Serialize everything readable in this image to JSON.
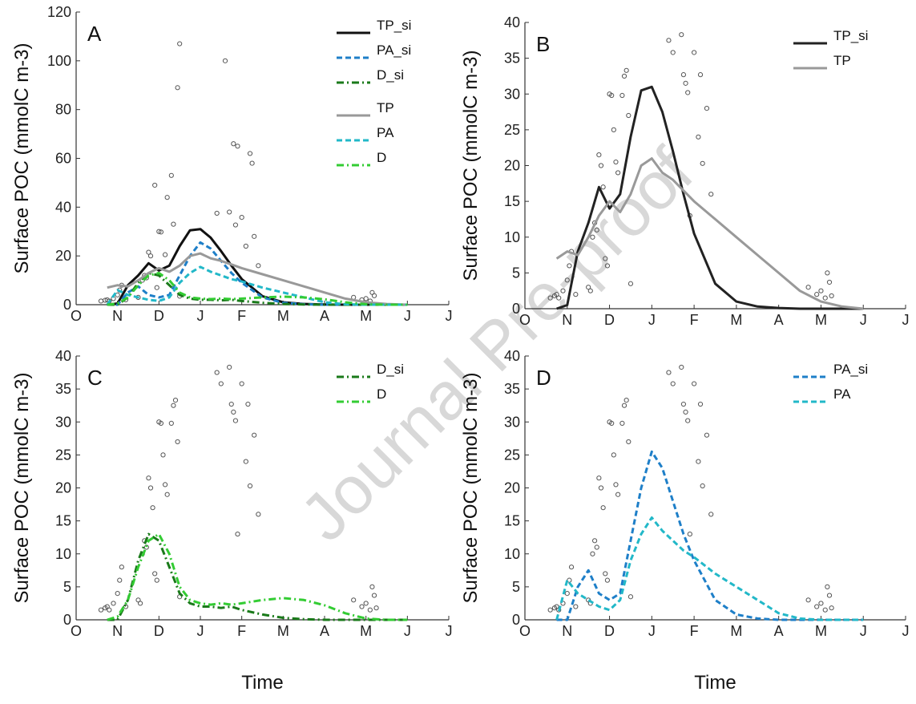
{
  "watermark": "Journal Pre-proof",
  "chart_data": [
    {
      "type": "line",
      "label": "A",
      "ylabel": "Surface POC (mmolC m-3)",
      "legend": "upper right",
      "xlim": [
        0,
        9
      ],
      "xticks": [
        {
          "value": 0,
          "label": "O"
        },
        {
          "value": 1,
          "label": "N"
        },
        {
          "value": 2,
          "label": "D"
        },
        {
          "value": 3,
          "label": "J"
        },
        {
          "value": 4,
          "label": "F"
        },
        {
          "value": 5,
          "label": "M"
        },
        {
          "value": 6,
          "label": "A"
        },
        {
          "value": 7,
          "label": "M"
        },
        {
          "value": 8,
          "label": "J"
        },
        {
          "value": 9,
          "label": "J"
        }
      ],
      "ylim": [
        0,
        120
      ],
      "yticks": [
        0,
        20,
        40,
        60,
        80,
        100,
        120
      ],
      "x": [
        0.75,
        1,
        1.25,
        1.5,
        1.75,
        2,
        2.25,
        2.5,
        2.75,
        3,
        3.25,
        3.5,
        3.75,
        4,
        4.5,
        5,
        5.5,
        6,
        6.5,
        7,
        7.5,
        8
      ],
      "series": [
        {
          "name": "TP_si",
          "color": "#111111",
          "dash": "solid",
          "values": [
            0,
            0.5,
            8,
            12,
            17,
            14,
            16,
            24,
            30.5,
            31,
            27.5,
            22,
            16,
            10.5,
            3.5,
            1,
            0.3,
            0.1,
            0,
            0,
            0,
            0
          ]
        },
        {
          "name": "PA_si",
          "color": "#1e7fc8",
          "dash": "dash",
          "values": [
            0,
            0,
            5,
            7.5,
            4,
            3,
            4,
            12,
            20,
            25.5,
            23,
            18,
            13,
            9,
            3,
            0.8,
            0.2,
            0,
            0,
            0,
            0,
            0
          ]
        },
        {
          "name": "D_si",
          "color": "#1a7a1a",
          "dash": "dashdot",
          "values": [
            0,
            0,
            3,
            9,
            13,
            12,
            8,
            4,
            2.5,
            2,
            2,
            1.8,
            2,
            1.5,
            0.8,
            0.3,
            0.1,
            0,
            0,
            0,
            0,
            0
          ]
        },
        {
          "name": "TP",
          "color": "#999999",
          "dash": "solid",
          "values": [
            7,
            8,
            7.5,
            10,
            13,
            15,
            13.5,
            16,
            20,
            21,
            19,
            18,
            16.5,
            15,
            12.5,
            10,
            7.5,
            5,
            2.5,
            1,
            0.3,
            0
          ]
        },
        {
          "name": "PA",
          "color": "#22b8c8",
          "dash": "dash",
          "values": [
            0,
            6,
            4,
            3,
            2,
            1.5,
            3,
            9,
            13,
            15.5,
            13.5,
            12,
            10.5,
            9.5,
            7,
            5,
            3,
            1,
            0.2,
            0,
            0,
            0
          ]
        },
        {
          "name": "D",
          "color": "#33cc33",
          "dash": "dashdot",
          "values": [
            0,
            0.5,
            3,
            8,
            12,
            13,
            10,
            5,
            3,
            2.5,
            2.3,
            2.5,
            2.3,
            2.5,
            3,
            3.3,
            3,
            2.2,
            1,
            0.2,
            0,
            0
          ]
        }
      ],
      "observations": {
        "x": [
          0.6,
          0.7,
          0.75,
          0.8,
          0.9,
          1.0,
          1.05,
          1.1,
          1.2,
          1.5,
          1.6,
          1.65,
          1.7,
          1.75,
          1.8,
          1.9,
          1.95,
          2.0,
          2.05,
          2.15,
          2.2,
          2.3,
          2.35,
          2.45,
          2.5,
          2.5,
          3.4,
          3.6,
          3.7,
          3.8,
          3.85,
          3.9,
          4.0,
          4.1,
          4.2,
          4.25,
          4.3,
          4.4,
          6.7,
          6.9,
          7.0,
          7.1,
          7.15,
          7.2
        ],
        "y": [
          1.5,
          1.8,
          2,
          1.5,
          2.5,
          4,
          6,
          8,
          2,
          3,
          10,
          12,
          11,
          21.5,
          20,
          49,
          7,
          30,
          29.8,
          20.5,
          44,
          53,
          33,
          89,
          107,
          3.5,
          37.5,
          100,
          38,
          66,
          32.7,
          65,
          35.8,
          24,
          62,
          58,
          28,
          16,
          3,
          2,
          2.5,
          1.5,
          5,
          3.7
        ]
      }
    },
    {
      "type": "line",
      "label": "B",
      "ylabel": "Surface POC (mmolC m-3)",
      "legend": "upper right",
      "xlim": [
        0,
        9
      ],
      "xticks": [
        {
          "value": 0,
          "label": "O"
        },
        {
          "value": 1,
          "label": "N"
        },
        {
          "value": 2,
          "label": "D"
        },
        {
          "value": 3,
          "label": "J"
        },
        {
          "value": 4,
          "label": "F"
        },
        {
          "value": 5,
          "label": "M"
        },
        {
          "value": 6,
          "label": "A"
        },
        {
          "value": 7,
          "label": "M"
        },
        {
          "value": 8,
          "label": "J"
        },
        {
          "value": 9,
          "label": "J"
        }
      ],
      "ylim": [
        0,
        40
      ],
      "yticks": [
        0,
        5,
        10,
        15,
        20,
        25,
        30,
        35,
        40
      ],
      "x": [
        0.75,
        1,
        1.25,
        1.5,
        1.75,
        2,
        2.25,
        2.5,
        2.75,
        3,
        3.25,
        3.5,
        3.75,
        4,
        4.5,
        5,
        5.5,
        6,
        6.5,
        7,
        7.5,
        8
      ],
      "series": [
        {
          "name": "TP_si",
          "color": "#222222",
          "dash": "solid",
          "values": [
            0,
            0.5,
            8,
            12,
            17,
            14,
            16,
            24,
            30.5,
            31,
            27.5,
            22,
            16,
            10.5,
            3.5,
            1,
            0.3,
            0.1,
            0,
            0,
            0,
            0
          ]
        },
        {
          "name": "TP",
          "color": "#999999",
          "dash": "solid",
          "values": [
            7,
            8,
            7.5,
            10,
            13,
            15,
            13.5,
            16,
            20,
            21,
            19,
            18,
            16.5,
            15,
            12.5,
            10,
            7.5,
            5,
            2.5,
            1,
            0.3,
            0
          ]
        }
      ],
      "observations": {
        "x": [
          0.6,
          0.7,
          0.75,
          0.8,
          0.9,
          1.0,
          1.05,
          1.1,
          1.2,
          1.5,
          1.55,
          1.6,
          1.65,
          1.7,
          1.75,
          1.8,
          1.85,
          1.9,
          1.95,
          2.0,
          2.05,
          2.1,
          2.15,
          2.2,
          2.3,
          2.35,
          2.4,
          2.45,
          2.5,
          3.4,
          3.5,
          3.7,
          3.75,
          3.8,
          3.85,
          3.9,
          4.0,
          4.1,
          4.15,
          4.2,
          4.3,
          4.4,
          6.7,
          6.9,
          7.0,
          7.1,
          7.15,
          7.2,
          7.25
        ],
        "y": [
          1.5,
          1.8,
          2,
          1.5,
          2.5,
          4,
          6,
          8,
          2,
          3,
          2.5,
          10,
          12,
          11,
          21.5,
          20,
          17,
          7,
          6,
          30,
          29.8,
          25,
          20.5,
          19,
          29.8,
          32.5,
          33.3,
          27,
          3.5,
          37.5,
          35.8,
          38.3,
          32.7,
          31.5,
          30.2,
          13,
          35.8,
          24,
          32.7,
          20.3,
          28,
          16,
          3,
          2,
          2.5,
          1.5,
          5,
          3.7,
          1.8
        ]
      }
    },
    {
      "type": "line",
      "label": "C",
      "ylabel": "Surface POC (mmolC m-3)",
      "xlabel": "Time",
      "legend": "upper right",
      "xlim": [
        0,
        9
      ],
      "xticks": [
        {
          "value": 0,
          "label": "O"
        },
        {
          "value": 1,
          "label": "N"
        },
        {
          "value": 2,
          "label": "D"
        },
        {
          "value": 3,
          "label": "J"
        },
        {
          "value": 4,
          "label": "F"
        },
        {
          "value": 5,
          "label": "M"
        },
        {
          "value": 6,
          "label": "A"
        },
        {
          "value": 7,
          "label": "M"
        },
        {
          "value": 8,
          "label": "J"
        },
        {
          "value": 9,
          "label": "J"
        }
      ],
      "ylim": [
        0,
        40
      ],
      "yticks": [
        0,
        5,
        10,
        15,
        20,
        25,
        30,
        35,
        40
      ],
      "x": [
        0.75,
        1,
        1.25,
        1.5,
        1.75,
        2,
        2.25,
        2.5,
        2.75,
        3,
        3.25,
        3.5,
        3.75,
        4,
        4.5,
        5,
        5.5,
        6,
        6.5,
        7,
        7.5,
        8
      ],
      "series": [
        {
          "name": "D_si",
          "color": "#1a7a1a",
          "dash": "dashdot",
          "values": [
            0,
            0,
            3,
            9,
            13,
            12,
            8,
            4,
            2.5,
            2,
            2,
            1.8,
            2,
            1.5,
            0.8,
            0.3,
            0.1,
            0,
            0,
            0,
            0,
            0
          ]
        },
        {
          "name": "D",
          "color": "#33cc33",
          "dash": "dashdot",
          "values": [
            0,
            0.5,
            3,
            8,
            12,
            13,
            10,
            5,
            3,
            2.5,
            2.3,
            2.5,
            2.3,
            2.5,
            3,
            3.3,
            3,
            2.2,
            1,
            0.2,
            0,
            0
          ]
        }
      ],
      "observations": {
        "x": [
          0.6,
          0.7,
          0.75,
          0.8,
          0.9,
          1.0,
          1.05,
          1.1,
          1.2,
          1.5,
          1.55,
          1.6,
          1.65,
          1.7,
          1.75,
          1.8,
          1.85,
          1.9,
          1.95,
          2.0,
          2.05,
          2.1,
          2.15,
          2.2,
          2.3,
          2.35,
          2.4,
          2.45,
          2.5,
          3.4,
          3.5,
          3.7,
          3.75,
          3.8,
          3.85,
          3.9,
          4.0,
          4.1,
          4.15,
          4.2,
          4.3,
          4.4,
          6.7,
          6.9,
          7.0,
          7.1,
          7.15,
          7.2,
          7.25
        ],
        "y": [
          1.5,
          1.8,
          2,
          1.5,
          2.5,
          4,
          6,
          8,
          2,
          3,
          2.5,
          10,
          12,
          11,
          21.5,
          20,
          17,
          7,
          6,
          30,
          29.8,
          25,
          20.5,
          19,
          29.8,
          32.5,
          33.3,
          27,
          3.5,
          37.5,
          35.8,
          38.3,
          32.7,
          31.5,
          30.2,
          13,
          35.8,
          24,
          32.7,
          20.3,
          28,
          16,
          3,
          2,
          2.5,
          1.5,
          5,
          3.7,
          1.8
        ]
      }
    },
    {
      "type": "line",
      "label": "D",
      "ylabel": "Surface POC (mmolC m-3)",
      "xlabel": "Time",
      "legend": "upper right",
      "xlim": [
        0,
        9
      ],
      "xticks": [
        {
          "value": 0,
          "label": "O"
        },
        {
          "value": 1,
          "label": "N"
        },
        {
          "value": 2,
          "label": "D"
        },
        {
          "value": 3,
          "label": "J"
        },
        {
          "value": 4,
          "label": "F"
        },
        {
          "value": 5,
          "label": "M"
        },
        {
          "value": 6,
          "label": "A"
        },
        {
          "value": 7,
          "label": "M"
        },
        {
          "value": 8,
          "label": "J"
        },
        {
          "value": 9,
          "label": "J"
        }
      ],
      "ylim": [
        0,
        40
      ],
      "yticks": [
        0,
        5,
        10,
        15,
        20,
        25,
        30,
        35,
        40
      ],
      "x": [
        0.75,
        1,
        1.25,
        1.5,
        1.75,
        2,
        2.25,
        2.5,
        2.75,
        3,
        3.25,
        3.5,
        3.75,
        4,
        4.5,
        5,
        5.5,
        6,
        6.5,
        7,
        7.5,
        8
      ],
      "series": [
        {
          "name": "PA_si",
          "color": "#1e7fc8",
          "dash": "dash",
          "values": [
            0,
            0,
            5,
            7.5,
            4,
            3,
            4,
            12,
            20,
            25.5,
            23,
            18,
            13,
            9,
            3,
            0.8,
            0.2,
            0,
            0,
            0,
            0,
            0
          ]
        },
        {
          "name": "PA",
          "color": "#22b8c8",
          "dash": "dash",
          "values": [
            0,
            6,
            4,
            3,
            2,
            1.5,
            3,
            9,
            13,
            15.5,
            13.5,
            12,
            10.5,
            9.5,
            7,
            5,
            3,
            1,
            0.2,
            0,
            0,
            0
          ]
        }
      ],
      "observations": {
        "x": [
          0.6,
          0.7,
          0.75,
          0.8,
          0.9,
          1.0,
          1.05,
          1.1,
          1.2,
          1.5,
          1.55,
          1.6,
          1.65,
          1.7,
          1.75,
          1.8,
          1.85,
          1.9,
          1.95,
          2.0,
          2.05,
          2.1,
          2.15,
          2.2,
          2.3,
          2.35,
          2.4,
          2.45,
          2.5,
          3.4,
          3.5,
          3.7,
          3.75,
          3.8,
          3.85,
          3.9,
          4.0,
          4.1,
          4.15,
          4.2,
          4.3,
          4.4,
          6.7,
          6.9,
          7.0,
          7.1,
          7.15,
          7.2,
          7.25
        ],
        "y": [
          1.5,
          1.8,
          2,
          1.5,
          2.5,
          4,
          6,
          8,
          2,
          3,
          2.5,
          10,
          12,
          11,
          21.5,
          20,
          17,
          7,
          6,
          30,
          29.8,
          25,
          20.5,
          19,
          29.8,
          32.5,
          33.3,
          27,
          3.5,
          37.5,
          35.8,
          38.3,
          32.7,
          31.5,
          30.2,
          13,
          35.8,
          24,
          32.7,
          20.3,
          28,
          16,
          3,
          2,
          2.5,
          1.5,
          5,
          3.7,
          1.8
        ]
      }
    }
  ]
}
